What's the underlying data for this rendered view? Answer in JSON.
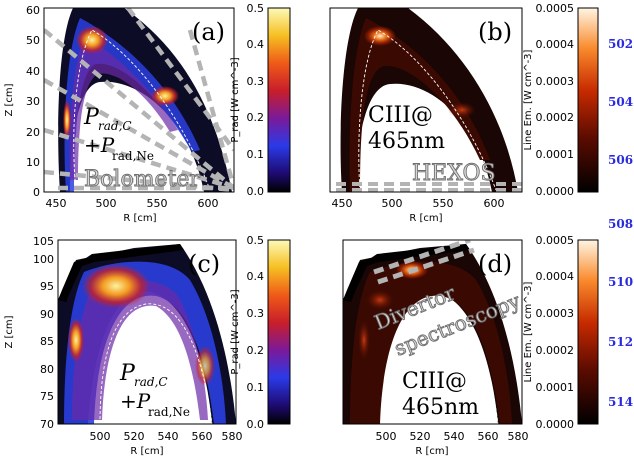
{
  "figure": {
    "panels": [
      {
        "label": "(a)",
        "xlabel": "R [cm]",
        "ylabel": "Z [cm]",
        "xticks": [
          "450",
          "500",
          "550",
          "600"
        ],
        "yticks": [
          "0",
          "10",
          "20",
          "30",
          "40",
          "50",
          "60"
        ],
        "annotation_main": "P",
        "annotation_main_sub": "rad,C",
        "annotation_plus": "+P",
        "annotation_plus_sub": "rad,Ne",
        "diagnostic": "Bolometer",
        "colorbar": {
          "label": "P_rad [W cm^-3]",
          "ticks": [
            "0.0",
            "0.1",
            "0.2",
            "0.3",
            "0.4",
            "0.5"
          ],
          "colormap": "rainbow"
        }
      },
      {
        "label": "(b)",
        "xlabel": "R [cm]",
        "ylabel": "",
        "xticks": [
          "450",
          "500",
          "550",
          "600"
        ],
        "yticks": [],
        "annotation_line1": "CIII@",
        "annotation_line2": "465nm",
        "diagnostic": "HEXOS",
        "colorbar": {
          "label": "Line Em. [W cm^-3]",
          "ticks": [
            "0.0000",
            "0.0001",
            "0.0002",
            "0.0003",
            "0.0004",
            "0.0005"
          ],
          "colormap": "hot"
        }
      },
      {
        "label": "(c)",
        "xlabel": "R [cm]",
        "ylabel": "Z [cm]",
        "xticks": [
          "500",
          "520",
          "540",
          "560",
          "580"
        ],
        "yticks": [
          "70",
          "75",
          "80",
          "85",
          "90",
          "95",
          "100",
          "105"
        ],
        "annotation_main": "P",
        "annotation_main_sub": "rad,C",
        "annotation_plus": "+P",
        "annotation_plus_sub": "rad,Ne",
        "colorbar": {
          "label": "P_rad [W cm^-3]",
          "ticks": [
            "0.0",
            "0.1",
            "0.2",
            "0.3",
            "0.4",
            "0.5"
          ],
          "colormap": "rainbow"
        }
      },
      {
        "label": "(d)",
        "xlabel": "R [cm]",
        "ylabel": "",
        "xticks": [
          "500",
          "520",
          "540",
          "560",
          "580"
        ],
        "yticks": [],
        "annotation_line1": "CIII@",
        "annotation_line2": "465nm",
        "diagnostic_line1": "Divertor",
        "diagnostic_line2": "spectroscopy",
        "colorbar": {
          "label": "Line Em. [W cm^-3]",
          "ticks": [
            "0.0000",
            "0.0001",
            "0.0002",
            "0.0003",
            "0.0004",
            "0.0005"
          ],
          "colormap": "hot"
        }
      }
    ],
    "line_numbers": [
      "502",
      "504",
      "506",
      "508",
      "510",
      "512",
      "514"
    ]
  },
  "colors": {
    "line_number_blue": "#2a2adf",
    "chord_gray": "#b4b4b4"
  }
}
